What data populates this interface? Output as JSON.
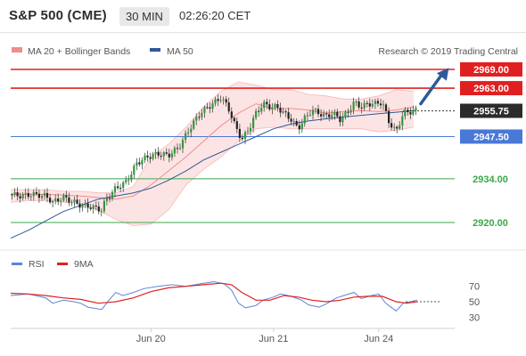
{
  "header": {
    "title": "S&P 500 (CME)",
    "timeframe": "30 MIN",
    "time": "02:26:20 CET"
  },
  "legend": {
    "ma20_label": "MA 20 + Bollinger Bands",
    "ma50_label": "MA 50",
    "source": "Research © 2019 Trading Central",
    "ma20_color": "#f08c8c",
    "ma50_color": "#2c5a9a"
  },
  "rsi_legend": {
    "rsi_label": "RSI",
    "ma_label": "9MA",
    "rsi_color": "#5b86d6",
    "ma_color": "#e02020"
  },
  "chart_data": [
    {
      "type": "candlestick",
      "title": "S&P 500 (CME) 30 MIN",
      "xlabels": [
        {
          "label": "Jun 20",
          "t": 0.4
        },
        {
          "label": "Jun 21",
          "t": 0.75
        },
        {
          "label": "Jun 24",
          "t": 1.05
        }
      ],
      "ylim": [
        2914,
        2972
      ],
      "price_ticks": [
        "2934.00",
        "2920.00"
      ],
      "levels": [
        {
          "label": "2969.00",
          "value": 2969.0,
          "kind": "resistance",
          "color": "#e02020"
        },
        {
          "label": "2963.00",
          "value": 2963.0,
          "kind": "resistance",
          "color": "#e02020"
        },
        {
          "label": "2955.75",
          "value": 2955.75,
          "kind": "last",
          "color": "#2b2b2b"
        },
        {
          "label": "2947.50",
          "value": 2947.5,
          "kind": "pivot",
          "color": "#4a78d6"
        },
        {
          "label": "2934.00",
          "value": 2934.0,
          "kind": "support",
          "color": "#3aa84a"
        },
        {
          "label": "2920.00",
          "value": 2920.0,
          "kind": "support",
          "color": "#3aa84a"
        }
      ],
      "ma50_points": [
        [
          0,
          2915
        ],
        [
          0.05,
          2917.5
        ],
        [
          0.1,
          2920.5
        ],
        [
          0.15,
          2923.5
        ],
        [
          0.2,
          2925.5
        ],
        [
          0.25,
          2927.5
        ],
        [
          0.3,
          2928.5
        ],
        [
          0.35,
          2929.5
        ],
        [
          0.4,
          2931
        ],
        [
          0.45,
          2933.5
        ],
        [
          0.5,
          2936.5
        ],
        [
          0.55,
          2940
        ],
        [
          0.6,
          2942.5
        ],
        [
          0.65,
          2945
        ],
        [
          0.7,
          2947.5
        ],
        [
          0.75,
          2950
        ],
        [
          0.8,
          2951.5
        ],
        [
          0.85,
          2952.5
        ],
        [
          0.9,
          2953.2
        ],
        [
          0.95,
          2953.8
        ],
        [
          1.0,
          2954.3
        ],
        [
          1.05,
          2954.8
        ],
        [
          1.1,
          2955.3
        ],
        [
          1.15,
          2955.8
        ],
        [
          1.2,
          2956.5
        ]
      ],
      "ma20_points": [
        [
          0,
          2929
        ],
        [
          0.05,
          2929
        ],
        [
          0.1,
          2929
        ],
        [
          0.15,
          2928.8
        ],
        [
          0.2,
          2928.5
        ],
        [
          0.25,
          2928
        ],
        [
          0.3,
          2927.5
        ],
        [
          0.35,
          2928.5
        ],
        [
          0.4,
          2932
        ],
        [
          0.45,
          2936.5
        ],
        [
          0.5,
          2941
        ],
        [
          0.55,
          2946
        ],
        [
          0.6,
          2951
        ],
        [
          0.65,
          2955
        ],
        [
          0.7,
          2958
        ],
        [
          0.75,
          2956.5
        ],
        [
          0.8,
          2956.5
        ],
        [
          0.85,
          2956
        ],
        [
          0.9,
          2955
        ],
        [
          0.95,
          2955.5
        ],
        [
          1.0,
          2955.8
        ],
        [
          1.05,
          2955.5
        ],
        [
          1.1,
          2956
        ],
        [
          1.15,
          2957
        ],
        [
          1.2,
          2957
        ]
      ],
      "bb_upper": [
        [
          0,
          2930.5
        ],
        [
          0.05,
          2930.5
        ],
        [
          0.1,
          2930.5
        ],
        [
          0.15,
          2930
        ],
        [
          0.2,
          2930
        ],
        [
          0.25,
          2929.5
        ],
        [
          0.3,
          2929.5
        ],
        [
          0.35,
          2931.5
        ],
        [
          0.4,
          2941
        ],
        [
          0.45,
          2945
        ],
        [
          0.5,
          2950.5
        ],
        [
          0.55,
          2957
        ],
        [
          0.6,
          2962
        ],
        [
          0.65,
          2965
        ],
        [
          0.7,
          2964
        ],
        [
          0.75,
          2962.5
        ],
        [
          0.8,
          2962.5
        ],
        [
          0.85,
          2961
        ],
        [
          0.9,
          2960.5
        ],
        [
          0.95,
          2959.5
        ],
        [
          1.0,
          2959.5
        ],
        [
          1.05,
          2960.5
        ],
        [
          1.1,
          2962.5
        ],
        [
          1.15,
          2962
        ],
        [
          1.2,
          2961
        ]
      ],
      "bb_lower": [
        [
          0,
          2926.5
        ],
        [
          0.05,
          2927
        ],
        [
          0.1,
          2927
        ],
        [
          0.15,
          2926.5
        ],
        [
          0.2,
          2926
        ],
        [
          0.25,
          2924
        ],
        [
          0.3,
          2921
        ],
        [
          0.35,
          2919
        ],
        [
          0.4,
          2919.5
        ],
        [
          0.45,
          2924
        ],
        [
          0.5,
          2932
        ],
        [
          0.55,
          2937
        ],
        [
          0.6,
          2941
        ],
        [
          0.65,
          2946
        ],
        [
          0.7,
          2950
        ],
        [
          0.75,
          2950.5
        ],
        [
          0.8,
          2950
        ],
        [
          0.85,
          2950
        ],
        [
          0.9,
          2950
        ],
        [
          0.95,
          2950
        ],
        [
          1.0,
          2950
        ],
        [
          1.05,
          2949
        ],
        [
          1.1,
          2949.5
        ],
        [
          1.15,
          2950.5
        ],
        [
          1.2,
          2950.5
        ]
      ],
      "close_path": [
        [
          0,
          2929
        ],
        [
          0.03,
          2928.5
        ],
        [
          0.06,
          2929
        ],
        [
          0.1,
          2928.5
        ],
        [
          0.12,
          2926.5
        ],
        [
          0.15,
          2928
        ],
        [
          0.18,
          2926.5
        ],
        [
          0.2,
          2925.5
        ],
        [
          0.23,
          2925
        ],
        [
          0.26,
          2924
        ],
        [
          0.27,
          2927
        ],
        [
          0.3,
          2931
        ],
        [
          0.33,
          2933
        ],
        [
          0.36,
          2939
        ],
        [
          0.39,
          2941
        ],
        [
          0.42,
          2942
        ],
        [
          0.45,
          2941.5
        ],
        [
          0.48,
          2944
        ],
        [
          0.51,
          2950
        ],
        [
          0.54,
          2955
        ],
        [
          0.57,
          2957.5
        ],
        [
          0.6,
          2960
        ],
        [
          0.62,
          2957
        ],
        [
          0.64,
          2951
        ],
        [
          0.66,
          2946.5
        ],
        [
          0.68,
          2950
        ],
        [
          0.7,
          2955
        ],
        [
          0.72,
          2958
        ],
        [
          0.74,
          2957
        ],
        [
          0.76,
          2957
        ],
        [
          0.78,
          2955
        ],
        [
          0.8,
          2953
        ],
        [
          0.82,
          2950
        ],
        [
          0.84,
          2953.5
        ],
        [
          0.86,
          2956
        ],
        [
          0.88,
          2955
        ],
        [
          0.9,
          2954
        ],
        [
          0.92,
          2955
        ],
        [
          0.94,
          2953
        ],
        [
          0.96,
          2955
        ],
        [
          0.98,
          2958.5
        ],
        [
          1.0,
          2957
        ],
        [
          1.02,
          2958
        ],
        [
          1.04,
          2958
        ],
        [
          1.06,
          2958.5
        ],
        [
          1.08,
          2952
        ],
        [
          1.1,
          2949
        ],
        [
          1.12,
          2955
        ],
        [
          1.14,
          2955.5
        ],
        [
          1.16,
          2956
        ]
      ],
      "forecast_arrow": {
        "from": [
          1.17,
          2958
        ],
        "to": [
          1.25,
          2969.5
        ]
      }
    },
    {
      "type": "line",
      "title": "RSI",
      "ylim": [
        20,
        80
      ],
      "yticks": [
        70,
        50,
        30
      ],
      "series": [
        {
          "name": "RSI",
          "points": [
            [
              0,
              58
            ],
            [
              0.05,
              60
            ],
            [
              0.1,
              55
            ],
            [
              0.12,
              48
            ],
            [
              0.15,
              52
            ],
            [
              0.18,
              50
            ],
            [
              0.2,
              48
            ],
            [
              0.22,
              43
            ],
            [
              0.26,
              40
            ],
            [
              0.28,
              52
            ],
            [
              0.3,
              62
            ],
            [
              0.32,
              58
            ],
            [
              0.35,
              62
            ],
            [
              0.38,
              67
            ],
            [
              0.42,
              70
            ],
            [
              0.46,
              72
            ],
            [
              0.5,
              70
            ],
            [
              0.55,
              74
            ],
            [
              0.58,
              76
            ],
            [
              0.61,
              73
            ],
            [
              0.63,
              65
            ],
            [
              0.65,
              48
            ],
            [
              0.67,
              42
            ],
            [
              0.7,
              45
            ],
            [
              0.72,
              52
            ],
            [
              0.75,
              56
            ],
            [
              0.77,
              60
            ],
            [
              0.8,
              57
            ],
            [
              0.83,
              52
            ],
            [
              0.85,
              46
            ],
            [
              0.88,
              43
            ],
            [
              0.9,
              47
            ],
            [
              0.93,
              55
            ],
            [
              0.95,
              58
            ],
            [
              0.98,
              62
            ],
            [
              1.0,
              54
            ],
            [
              1.03,
              58
            ],
            [
              1.05,
              60
            ],
            [
              1.07,
              48
            ],
            [
              1.1,
              38
            ],
            [
              1.12,
              48
            ],
            [
              1.16,
              52
            ]
          ]
        },
        {
          "name": "9MA",
          "points": [
            [
              0,
              61
            ],
            [
              0.05,
              60
            ],
            [
              0.1,
              58
            ],
            [
              0.15,
              55
            ],
            [
              0.2,
              53
            ],
            [
              0.25,
              48
            ],
            [
              0.3,
              50
            ],
            [
              0.35,
              55
            ],
            [
              0.4,
              63
            ],
            [
              0.45,
              68
            ],
            [
              0.5,
              70
            ],
            [
              0.55,
              72
            ],
            [
              0.6,
              74
            ],
            [
              0.63,
              72
            ],
            [
              0.66,
              62
            ],
            [
              0.7,
              52
            ],
            [
              0.74,
              52
            ],
            [
              0.78,
              58
            ],
            [
              0.82,
              56
            ],
            [
              0.86,
              52
            ],
            [
              0.9,
              50
            ],
            [
              0.94,
              52
            ],
            [
              0.98,
              56
            ],
            [
              1.02,
              57
            ],
            [
              1.06,
              57
            ],
            [
              1.1,
              50
            ],
            [
              1.13,
              48
            ],
            [
              1.16,
              50
            ]
          ]
        }
      ]
    }
  ]
}
